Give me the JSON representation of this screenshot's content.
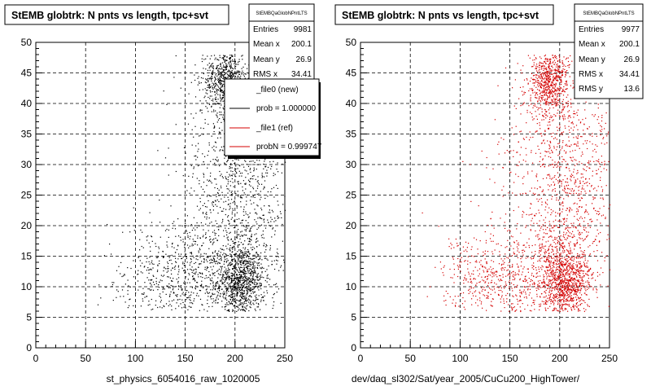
{
  "colors": {
    "left_points": "#000000",
    "right_points": "#d40000",
    "grid": "#000000"
  },
  "left": {
    "title": "StEMB globtrk: N pnts vs length, tpc+svt",
    "xlabel": "st_physics_6054016_raw_1020005",
    "stats": {
      "name": "StEMBQaGlobNPntLTS",
      "rows": [
        {
          "label": "Entries",
          "value": "9981"
        },
        {
          "label": "Mean x",
          "value": "200.1"
        },
        {
          "label": "Mean y",
          "value": "26.9"
        },
        {
          "label": "RMS x",
          "value": "34.41"
        }
      ]
    },
    "legend": [
      {
        "text": "_file0 (new)",
        "line": false
      },
      {
        "text": "prob = 1.000000",
        "line": true,
        "color": "#000000"
      },
      {
        "text": "_file1 (ref)",
        "line": true,
        "color": "#d40000"
      },
      {
        "text": "probN = 0.999747",
        "line": true,
        "color": "#d40000"
      }
    ]
  },
  "right": {
    "title": "StEMB globtrk: N pnts vs length, tpc+svt",
    "xlabel": "dev/daq_sl302/Sat/year_2005/CuCu200_HighTower/",
    "stats": {
      "name": "StEMBQaGlobNPntLTS",
      "rows": [
        {
          "label": "Entries",
          "value": "9977"
        },
        {
          "label": "Mean x",
          "value": "200.1"
        },
        {
          "label": "Mean y",
          "value": "26.9"
        },
        {
          "label": "RMS x",
          "value": "34.41"
        },
        {
          "label": "RMS y",
          "value": "13.6"
        }
      ]
    }
  },
  "chart_data": [
    {
      "type": "scatter",
      "title": "StEMB globtrk: N pnts vs length, tpc+svt",
      "xlabel": "st_physics_6054016_raw_1020005",
      "ylabel": "",
      "xlim": [
        0,
        250
      ],
      "ylim": [
        0,
        50
      ],
      "xticks": [
        0,
        50,
        100,
        150,
        200,
        250
      ],
      "yticks": [
        0,
        5,
        10,
        15,
        20,
        25,
        30,
        35,
        40,
        45,
        50
      ],
      "grid": true,
      "series": [
        {
          "name": "_file0 (new)",
          "color": "#000000",
          "entries": 9981,
          "density_clusters": [
            {
              "x": 205,
              "y": 11,
              "sx": 12,
              "sy": 3,
              "n": 900
            },
            {
              "x": 190,
              "y": 44,
              "sx": 10,
              "sy": 3,
              "n": 700
            },
            {
              "x": 210,
              "y": 26,
              "sx": 25,
              "sy": 11,
              "n": 900
            },
            {
              "x": 165,
              "y": 12,
              "sx": 35,
              "sy": 4,
              "n": 500
            },
            {
              "x": 120,
              "y": 11,
              "sx": 25,
              "sy": 4,
              "n": 250
            },
            {
              "x": 185,
              "y": 28,
              "sx": 25,
              "sy": 12,
              "n": 300
            }
          ]
        }
      ]
    },
    {
      "type": "scatter",
      "title": "StEMB globtrk: N pnts vs length, tpc+svt",
      "xlabel": "dev/daq_sl302/Sat/year_2005/CuCu200_HighTower/",
      "ylabel": "",
      "xlim": [
        0,
        250
      ],
      "ylim": [
        0,
        50
      ],
      "xticks": [
        0,
        50,
        100,
        150,
        200,
        250
      ],
      "yticks": [
        0,
        5,
        10,
        15,
        20,
        25,
        30,
        35,
        40,
        45,
        50
      ],
      "grid": true,
      "series": [
        {
          "name": "_file1 (ref)",
          "color": "#d40000",
          "entries": 9977,
          "density_clusters": [
            {
              "x": 205,
              "y": 11,
              "sx": 12,
              "sy": 3,
              "n": 900
            },
            {
              "x": 190,
              "y": 44,
              "sx": 10,
              "sy": 3,
              "n": 700
            },
            {
              "x": 210,
              "y": 26,
              "sx": 25,
              "sy": 11,
              "n": 900
            },
            {
              "x": 165,
              "y": 12,
              "sx": 35,
              "sy": 4,
              "n": 500
            },
            {
              "x": 120,
              "y": 11,
              "sx": 25,
              "sy": 4,
              "n": 250
            },
            {
              "x": 185,
              "y": 28,
              "sx": 25,
              "sy": 12,
              "n": 300
            }
          ]
        }
      ]
    }
  ]
}
